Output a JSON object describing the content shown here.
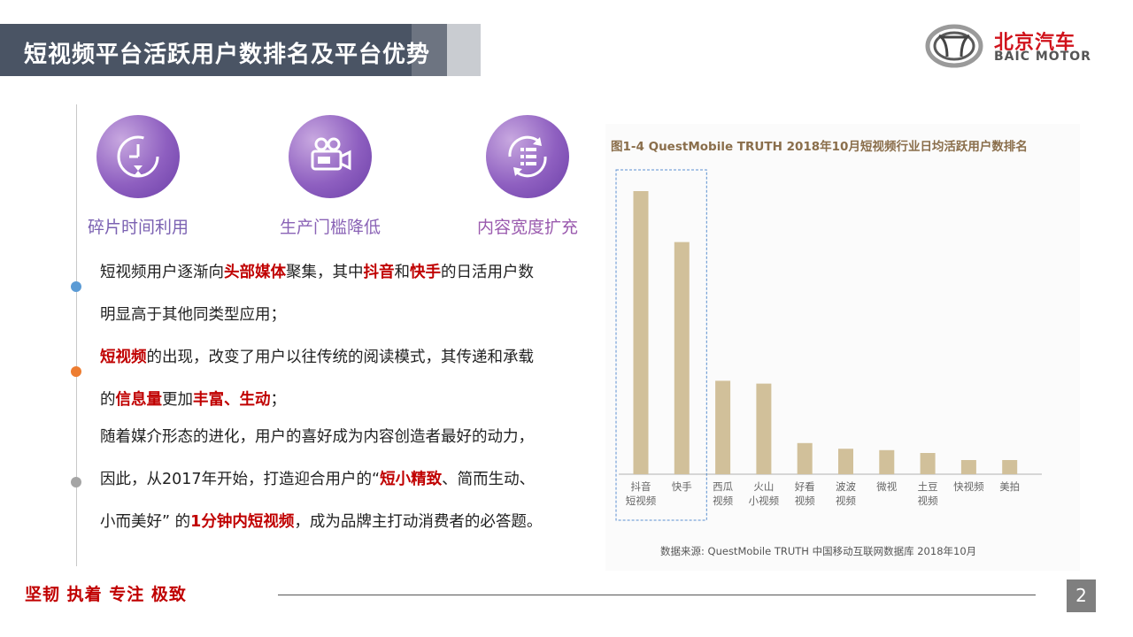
{
  "header": {
    "title": "短视频平台活跃用户数排名及平台优势"
  },
  "logo": {
    "cn": "北京汽车",
    "en": "BAIC MOTOR"
  },
  "features": [
    {
      "label": "碎片时间利用",
      "icon": "clock-icon"
    },
    {
      "label": "生产门槛降低",
      "icon": "video-camera-icon"
    },
    {
      "label": "内容宽度扩充",
      "icon": "list-refresh-icon"
    }
  ],
  "paragraphs": {
    "p1": [
      {
        "text": "短视频用户逐渐向",
        "hl": false
      },
      {
        "text": "头部媒体",
        "hl": true
      },
      {
        "text": "聚集，其中",
        "hl": false
      },
      {
        "text": "抖音",
        "hl": true
      },
      {
        "text": "和",
        "hl": false
      },
      {
        "text": "快手",
        "hl": true
      },
      {
        "text": "的日活用户数明显高于其他同类型应用；",
        "hl": false
      }
    ],
    "p2": [
      {
        "text": "短视频",
        "hl": true
      },
      {
        "text": "的出现，改变了用户以往传统的阅读模式，其传递和承载的",
        "hl": false
      },
      {
        "text": "信息量",
        "hl": true
      },
      {
        "text": "更加",
        "hl": false
      },
      {
        "text": "丰富、生动",
        "hl": true
      },
      {
        "text": "；",
        "hl": false
      }
    ],
    "p3": [
      {
        "text": "随着媒介形态的进化，用户的喜好成为内容创造者最好的动力，因此，从2017年开始，打造迎合用户的“",
        "hl": false
      },
      {
        "text": "短小精致",
        "hl": true
      },
      {
        "text": "、简而生动、小而美好” 的",
        "hl": false
      },
      {
        "text": "1分钟内短视频",
        "hl": true
      },
      {
        "text": "，成为品牌主打动消费者的必答题。",
        "hl": false
      }
    ]
  },
  "chart_data": {
    "type": "bar",
    "title": "图1-4  QuestMobile  TRUTH 2018年10月短视频行业日均活跃用户数排名",
    "source": "数据来源: QuestMobile TRUTH 中国移动互联网数据库 2018年10月",
    "categories": [
      [
        "抖音",
        "短视频"
      ],
      [
        "快手"
      ],
      [
        "西瓜",
        "视频"
      ],
      [
        "火山",
        "小视频"
      ],
      [
        "好看",
        "视频"
      ],
      [
        "波波",
        "视频"
      ],
      [
        "微视"
      ],
      [
        "土豆",
        "视频"
      ],
      [
        "快视频"
      ],
      [
        "美拍"
      ]
    ],
    "values": [
      100,
      82,
      33,
      32,
      11,
      9,
      8.5,
      7.5,
      5,
      5
    ],
    "ylim": [
      0,
      100
    ],
    "bar_color": "#d1c09a",
    "highlight": {
      "from": 0,
      "to": 1,
      "color": "#5b8fd0"
    }
  },
  "footer": {
    "slogan": "坚韧  执着  专注  极致",
    "page": "2"
  }
}
